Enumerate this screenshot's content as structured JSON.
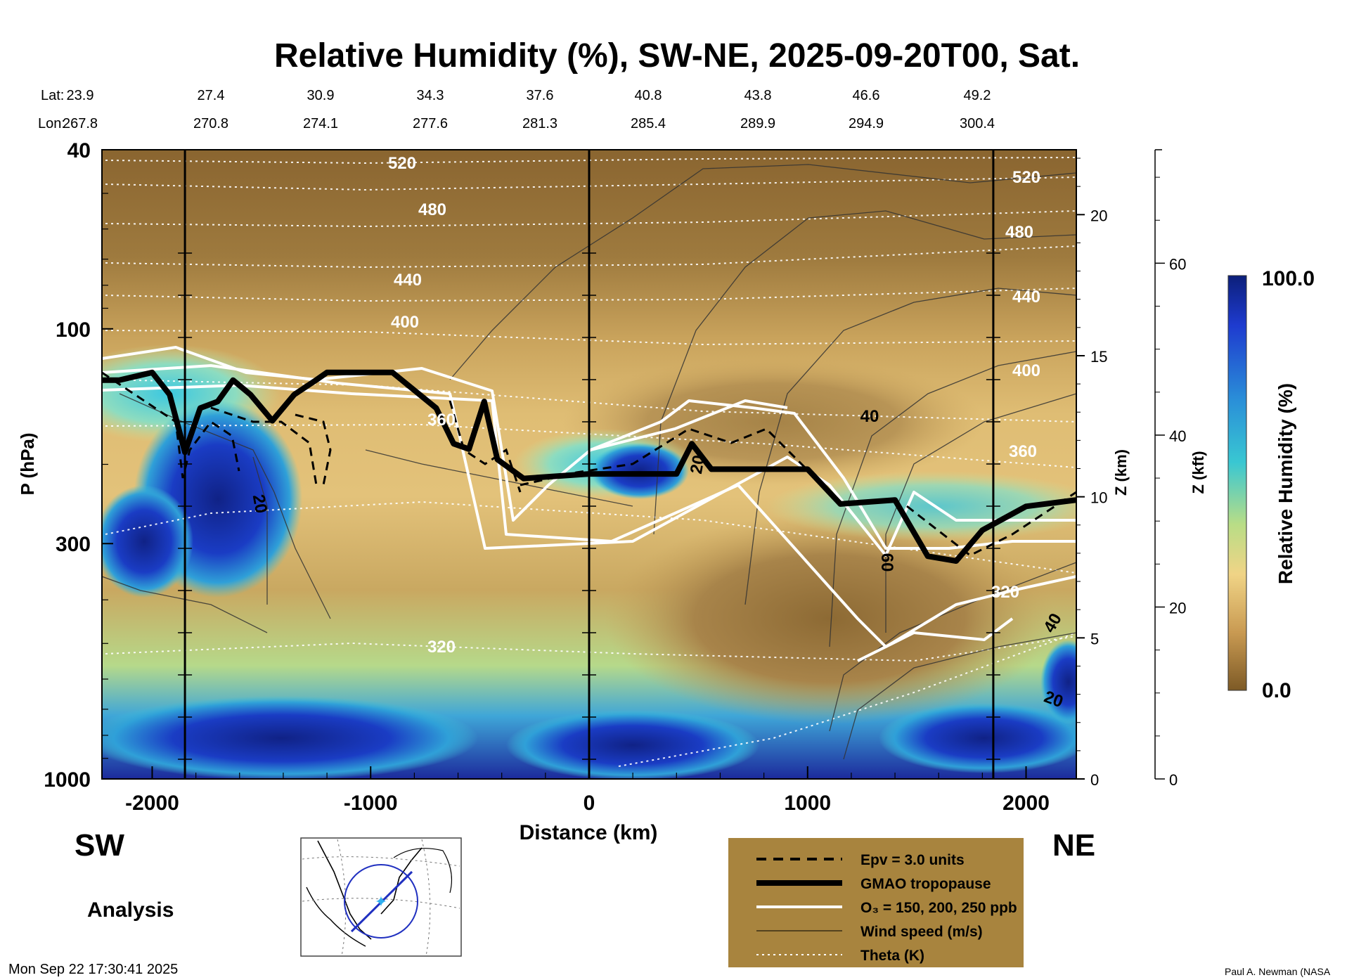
{
  "title": "Relative Humidity (%), SW-NE, 2025-09-20T00, Sat.",
  "header": {
    "lat_label": "Lat:",
    "lon_label": "Lon:",
    "lat": [
      "23.9",
      "27.4",
      "30.9",
      "34.3",
      "37.6",
      "40.8",
      "43.8",
      "46.6",
      "49.2"
    ],
    "lon": [
      "267.8",
      "270.8",
      "274.1",
      "277.6",
      "281.3",
      "285.4",
      "289.9",
      "294.9",
      "300.4"
    ]
  },
  "chart_data": {
    "type": "heatmap",
    "title": "Relative Humidity (%), SW-NE, 2025-09-20T00, Sat.",
    "xlabel": "Distance (km)",
    "ylabel": "P (hPa)",
    "ylabel_right_km": "Z (km)",
    "ylabel_right_kft": "Z (kft)",
    "xlim": [
      -2230,
      2230
    ],
    "ylim": [
      1000,
      40
    ],
    "x_ticks": [
      -2000,
      -1000,
      0,
      1000,
      2000
    ],
    "x_tick_labels": [
      "-2000",
      "-1000",
      "0",
      "1000",
      "2000"
    ],
    "y_ticks": [
      40,
      100,
      300,
      1000
    ],
    "y_tick_labels": [
      "40",
      "100",
      "300",
      "1000"
    ],
    "z_km_ticks": [
      0,
      5,
      10,
      15,
      20
    ],
    "z_km_labels": [
      "0",
      "5",
      "10",
      "15",
      "20"
    ],
    "z_kft_ticks": [
      0,
      20,
      40,
      60
    ],
    "z_kft_labels": [
      "0",
      "20",
      "40",
      "60"
    ],
    "vertical_lines_km": [
      -1850,
      0,
      1850
    ],
    "colorbar": {
      "label": "Relative Humidity (%)",
      "min": 0.0,
      "max": 100.0,
      "min_label": "0.0",
      "max_label": "100.0"
    },
    "theta_levels": [
      "320",
      "360",
      "400",
      "440",
      "480",
      "520"
    ],
    "wind_labels": [
      "20",
      "20",
      "40",
      "60",
      "40",
      "20"
    ],
    "tropopause": [
      [
        -2230,
        130
      ],
      [
        -2150,
        130
      ],
      [
        -2000,
        125
      ],
      [
        -1920,
        140
      ],
      [
        -1850,
        188
      ],
      [
        -1780,
        150
      ],
      [
        -1700,
        145
      ],
      [
        -1630,
        130
      ],
      [
        -1550,
        140
      ],
      [
        -1450,
        160
      ],
      [
        -1350,
        140
      ],
      [
        -1250,
        130
      ],
      [
        -1200,
        125
      ],
      [
        -900,
        125
      ],
      [
        -700,
        150
      ],
      [
        -620,
        180
      ],
      [
        -550,
        185
      ],
      [
        -480,
        145
      ],
      [
        -420,
        195
      ],
      [
        -300,
        215
      ],
      [
        0,
        210
      ],
      [
        400,
        210
      ],
      [
        470,
        180
      ],
      [
        560,
        205
      ],
      [
        1000,
        205
      ],
      [
        1150,
        245
      ],
      [
        1400,
        240
      ],
      [
        1550,
        320
      ],
      [
        1680,
        328
      ],
      [
        1800,
        280
      ],
      [
        2000,
        248
      ],
      [
        2230,
        240
      ]
    ],
    "legend": [
      {
        "label": "Epv = 3.0 units",
        "style": "dashed"
      },
      {
        "label": "GMAO tropopause",
        "style": "thick"
      },
      {
        "label": "O₃ = 150, 200, 250 ppb",
        "style": "white"
      },
      {
        "label": "Wind speed (m/s)",
        "style": "thin"
      },
      {
        "label": "Theta (K)",
        "style": "dotted"
      }
    ]
  },
  "labels": {
    "sw": "SW",
    "ne": "NE",
    "analysis": "Analysis"
  },
  "footer": {
    "timestamp": "Mon Sep 22 17:30:41 2025",
    "credit": "Paul A. Newman (NASA"
  },
  "colors": {
    "humid": "#1a2ea8",
    "dry": "#8a6530",
    "legend_bg": "#a8843e"
  }
}
